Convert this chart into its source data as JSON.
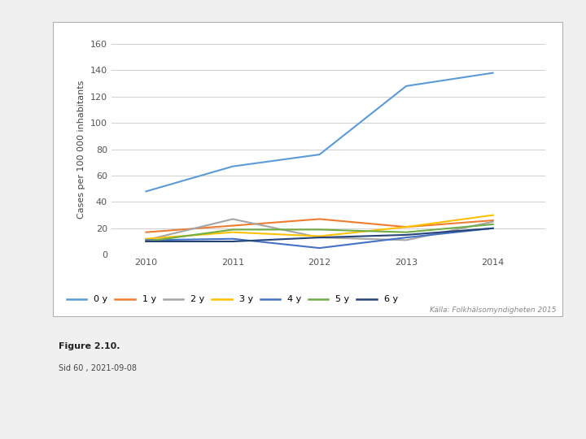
{
  "years": [
    2010,
    2011,
    2012,
    2013,
    2014
  ],
  "series": {
    "0 y": {
      "values": [
        48,
        67,
        76,
        128,
        138
      ],
      "color": "#5b9bd5",
      "linewidth": 1.5
    },
    "1 y": {
      "values": [
        17,
        22,
        27,
        21,
        26
      ],
      "color": "#ed7d31",
      "linewidth": 1.5
    },
    "2 y": {
      "values": [
        11,
        27,
        13,
        11,
        25
      ],
      "color": "#a5a5a5",
      "linewidth": 1.5
    },
    "3 y": {
      "values": [
        12,
        17,
        14,
        21,
        30
      ],
      "color": "#ffc000",
      "linewidth": 1.5
    },
    "4 y": {
      "values": [
        11,
        12,
        5,
        13,
        20
      ],
      "color": "#4472c4",
      "linewidth": 1.5
    },
    "5 y": {
      "values": [
        10,
        19,
        19,
        17,
        23
      ],
      "color": "#70ad47",
      "linewidth": 1.5
    },
    "6 y": {
      "values": [
        10,
        10,
        13,
        15,
        20
      ],
      "color": "#264478",
      "linewidth": 1.5
    }
  },
  "ylabel": "Cases per 100 000 inhabitants",
  "ylim": [
    0,
    160
  ],
  "yticks": [
    0,
    20,
    40,
    60,
    80,
    100,
    120,
    140,
    160
  ],
  "xlim": [
    2009.6,
    2014.6
  ],
  "xticks": [
    2010,
    2011,
    2012,
    2013,
    2014
  ],
  "source_text": "Källa: Folkhälsomyndigheten 2015",
  "figure2_text": "Figure 2.10.",
  "figure2_subtext": "Sid 60 , 2021-09-08",
  "chart_bg": "#ffffff",
  "page_bg": "#f0f0f0",
  "grid_color": "#d0d0d0",
  "border_color": "#b0b0b0",
  "tick_color": "#555555",
  "label_color": "#444444"
}
